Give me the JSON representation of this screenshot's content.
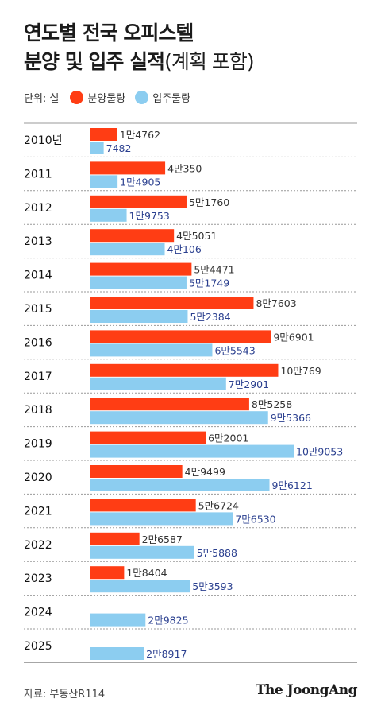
{
  "title": {
    "line1": "연도별 전국 오피스텔",
    "line2_main": "분양 및 입주 실적",
    "line2_sub": "(계획 포함)"
  },
  "legend": {
    "unit": "단위: 실",
    "supply_label": "분양물량",
    "move_in_label": "입주물량"
  },
  "colors": {
    "supply": "#ff3d14",
    "move_in": "#8ccdf0",
    "supply_text": "#333333",
    "move_in_text": "#2a3f8f",
    "rule": "#999999"
  },
  "chart_data": {
    "type": "bar",
    "orientation": "horizontal",
    "categories": [
      "2010년",
      "2011",
      "2012",
      "2013",
      "2014",
      "2015",
      "2016",
      "2017",
      "2018",
      "2019",
      "2020",
      "2021",
      "2022",
      "2023",
      "2024",
      "2025"
    ],
    "series": [
      {
        "name": "분양물량",
        "values": [
          14762,
          40350,
          51760,
          45051,
          54471,
          87603,
          96901,
          100769,
          85258,
          62001,
          49499,
          56724,
          26587,
          18404,
          null,
          null
        ],
        "labels": [
          "1만4762",
          "4만350",
          "5만1760",
          "4만5051",
          "5만4471",
          "8만7603",
          "9만6901",
          "10만769",
          "8만5258",
          "6만2001",
          "4만9499",
          "5만6724",
          "2만6587",
          "1만8404",
          "",
          ""
        ]
      },
      {
        "name": "입주물량",
        "values": [
          7482,
          14905,
          19753,
          40106,
          51749,
          52384,
          65543,
          72901,
          95366,
          109053,
          96121,
          76530,
          55888,
          53593,
          29825,
          28917
        ],
        "labels": [
          "7482",
          "1만4905",
          "1만9753",
          "4만106",
          "5만1749",
          "5만2384",
          "6만5543",
          "7만2901",
          "9만5366",
          "10만9053",
          "9만6121",
          "7만6530",
          "5만5888",
          "5만3593",
          "2만9825",
          "2만8917"
        ]
      }
    ],
    "xlim": [
      0,
      109053
    ]
  },
  "source": "자료: 부동산R114",
  "brand": "The JoongAng"
}
